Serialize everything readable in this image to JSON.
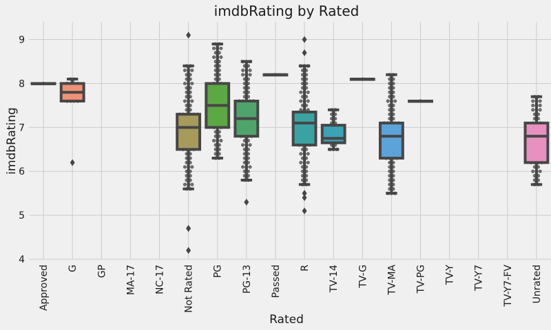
{
  "chart_data": {
    "type": "box",
    "title": "imdbRating by Rated",
    "xlabel": "Rated",
    "ylabel": "imdbRating",
    "ylim": [
      4,
      9.4
    ],
    "yticks": [
      4,
      5,
      6,
      7,
      8,
      9
    ],
    "grid": true,
    "categories": [
      "Approved",
      "G",
      "GP",
      "MA-17",
      "NC-17",
      "Not Rated",
      "PG",
      "PG-13",
      "Passed",
      "R",
      "TV-14",
      "TV-G",
      "TV-MA",
      "TV-PG",
      "TV-Y",
      "TV-Y7",
      "TV-Y7-FV",
      "Unrated"
    ],
    "colors": [
      "#3274a1",
      "#e1812c",
      "#3a923a",
      "#c03d3e",
      "#9372b2",
      "#845b53",
      "#d684bd",
      "#7f7f7f",
      "#a9aa35",
      "#2ed0df",
      "#3274a1",
      "#e1812c",
      "#3a923a",
      "#c03d3e",
      "#9372b2",
      "#845b53",
      "#d684bd",
      "#7f7f7f"
    ],
    "boxes": [
      {
        "category": "Approved",
        "min": 8.0,
        "q1": 8.0,
        "median": 8.0,
        "q3": 8.0,
        "max": 8.0,
        "fliers": [],
        "color": "#4c9fd4"
      },
      {
        "category": "G",
        "min": 7.6,
        "q1": 7.6,
        "median": 7.8,
        "q3": 8.0,
        "max": 8.1,
        "fliers": [
          6.2
        ],
        "color": "#ef9177"
      },
      {
        "category": "GP",
        "empty": true
      },
      {
        "category": "MA-17",
        "empty": true
      },
      {
        "category": "NC-17",
        "empty": true
      },
      {
        "category": "Not Rated",
        "min": 5.6,
        "q1": 6.5,
        "median": 7.0,
        "q3": 7.3,
        "max": 8.4,
        "fliers": [
          9.1,
          4.7,
          4.7,
          4.2
        ],
        "color": "#a79b5b"
      },
      {
        "category": "PG",
        "min": 6.3,
        "q1": 7.0,
        "median": 7.5,
        "q3": 8.0,
        "max": 8.9,
        "fliers": [],
        "color": "#5ca845"
      },
      {
        "category": "PG-13",
        "min": 5.8,
        "q1": 6.8,
        "median": 7.2,
        "q3": 7.6,
        "max": 8.5,
        "fliers": [
          5.3
        ],
        "color": "#4fa46c"
      },
      {
        "category": "Passed",
        "min": 8.2,
        "q1": 8.2,
        "median": 8.2,
        "q3": 8.2,
        "max": 8.2,
        "fliers": [],
        "color": "#56a89a"
      },
      {
        "category": "R",
        "min": 5.7,
        "q1": 6.6,
        "median": 7.1,
        "q3": 7.35,
        "max": 8.4,
        "fliers": [
          9.0,
          8.7,
          5.5,
          5.4,
          5.1
        ],
        "color": "#3aa3a2"
      },
      {
        "category": "TV-14",
        "min": 6.5,
        "q1": 6.65,
        "median": 6.75,
        "q3": 7.05,
        "max": 7.4,
        "fliers": [],
        "color": "#3ba3b5"
      },
      {
        "category": "TV-G",
        "min": 8.1,
        "q1": 8.1,
        "median": 8.1,
        "q3": 8.1,
        "max": 8.1,
        "fliers": [],
        "color": "#44a6c8"
      },
      {
        "category": "TV-MA",
        "min": 5.5,
        "q1": 6.3,
        "median": 6.8,
        "q3": 7.1,
        "max": 8.2,
        "fliers": [],
        "color": "#5ba3d8"
      },
      {
        "category": "TV-PG",
        "min": 7.6,
        "q1": 7.6,
        "median": 7.6,
        "q3": 7.6,
        "max": 7.6,
        "fliers": [],
        "color": "#7d9ee0"
      },
      {
        "category": "TV-Y",
        "empty": true
      },
      {
        "category": "TV-Y7",
        "empty": true
      },
      {
        "category": "TV-Y7-FV",
        "empty": true
      },
      {
        "category": "Unrated",
        "min": 5.7,
        "q1": 6.2,
        "median": 6.8,
        "q3": 7.1,
        "max": 7.7,
        "fliers": [],
        "color": "#e890c0"
      }
    ]
  }
}
